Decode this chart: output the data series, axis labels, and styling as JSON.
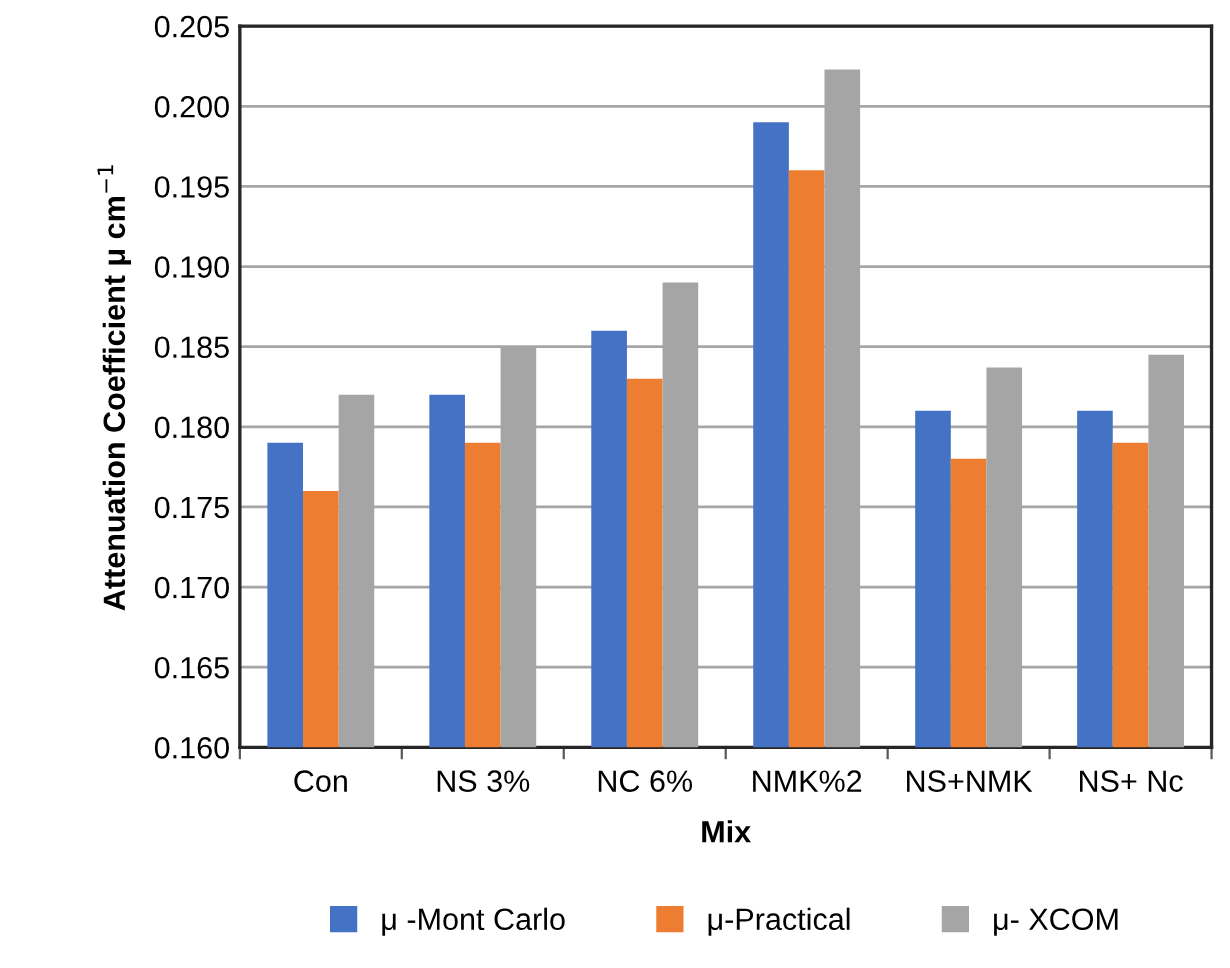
{
  "chart_data": {
    "type": "bar",
    "xlabel": "Mix",
    "ylabel": "Attenuation Coefficient μ cm$^{−1}$",
    "categories": [
      "Con",
      "NS 3%",
      "NC 6%",
      "NMK%2",
      "NS+NMK",
      "NS+ Nc"
    ],
    "series": [
      {
        "name": "μ -Mont Carlo",
        "color": "#4472c4",
        "values": [
          0.179,
          0.182,
          0.186,
          0.199,
          0.181,
          0.181
        ]
      },
      {
        "name": "μ-Practical",
        "color": "#ed7d31",
        "values": [
          0.176,
          0.179,
          0.183,
          0.196,
          0.178,
          0.179
        ]
      },
      {
        "name": "μ- XCOM",
        "color": "#a5a5a5",
        "values": [
          0.182,
          0.185,
          0.189,
          0.2023,
          0.1837,
          0.1845
        ]
      }
    ],
    "ylim": [
      0.16,
      0.205
    ],
    "yticks": [
      {
        "value": 0.16,
        "label": "0.160"
      },
      {
        "value": 0.165,
        "label": "0.165"
      },
      {
        "value": 0.17,
        "label": "0.170"
      },
      {
        "value": 0.175,
        "label": "0.175"
      },
      {
        "value": 0.18,
        "label": "0.180"
      },
      {
        "value": 0.185,
        "label": "0.185"
      },
      {
        "value": 0.19,
        "label": "0.190"
      },
      {
        "value": 0.195,
        "label": "0.195"
      },
      {
        "value": 0.2,
        "label": "0.200"
      },
      {
        "value": 0.205,
        "label": "0.205"
      }
    ],
    "grid": "y",
    "legend": "bottom"
  }
}
